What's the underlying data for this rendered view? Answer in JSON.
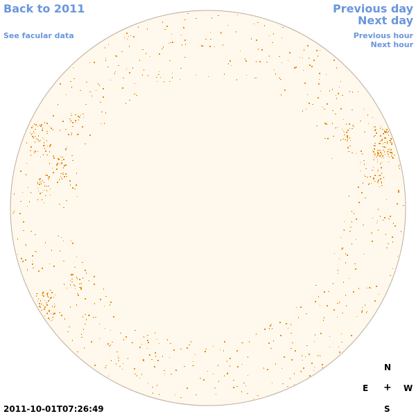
{
  "nav": {
    "back_to_year": "Back to 2011",
    "see_facular": "See facular data",
    "previous_day": "Previous day",
    "next_day": "Next day",
    "previous_hour": "Previous hour",
    "next_hour": "Next hour"
  },
  "compass": {
    "north": "N",
    "east": "E",
    "center": "+",
    "west": "W",
    "south": "S"
  },
  "timestamp": "2011-10-01T07:26:49",
  "colors": {
    "link": "#6a96dc",
    "disk_fill": "#fff8ec",
    "disk_stroke": "#b9ad9a",
    "facula": "#e88a0c"
  }
}
